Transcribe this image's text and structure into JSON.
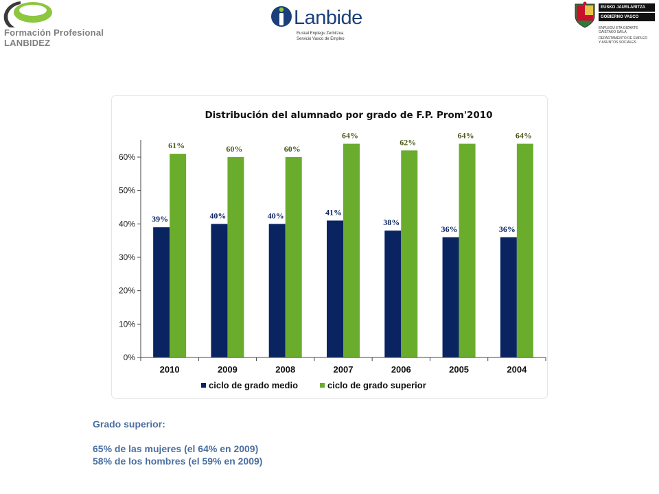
{
  "header": {
    "fp_logo": {
      "line1": "Formación Profesional",
      "line2": "LANBIDEZ",
      "accent": "#8dc63f"
    },
    "lanbide_logo": {
      "word": "Lanbide",
      "sub1": "Euskal Enplegu Zerbitzua",
      "sub2": "Servicio Vasco de Empleo",
      "color": "#1b3f7a"
    },
    "gv_logo": {
      "band1": "EUSKO JAURLARITZA",
      "band2": "GOBIERNO VASCO",
      "dept1": "ENPLEGU ETA GIZARTE",
      "dept2": "GAIETAKO SAILA",
      "dept3": "DEPARTAMENTO DE EMPLEO",
      "dept4": "Y ASUNTOS SOCIALES"
    }
  },
  "chart_data": {
    "type": "bar",
    "title": "Distribución del alumnado por grado de F.P. Prom'2010",
    "categories": [
      "2010",
      "2009",
      "2008",
      "2007",
      "2006",
      "2005",
      "2004"
    ],
    "series": [
      {
        "name": "ciclo de grado medio",
        "values": [
          39,
          40,
          40,
          41,
          38,
          36,
          36
        ],
        "labels": [
          "39%",
          "40%",
          "40%",
          "41%",
          "38%",
          "36%",
          "36%"
        ],
        "color": "#0a2462"
      },
      {
        "name": "ciclo de grado superior",
        "values": [
          61,
          60,
          60,
          64,
          62,
          64,
          64
        ],
        "labels": [
          "61%",
          "60%",
          "60%",
          "64%",
          "62%",
          "64%",
          "64%"
        ],
        "color": "#6aac2c"
      }
    ],
    "ylim": [
      0,
      60
    ],
    "yticks": [
      "0%",
      "10%",
      "20%",
      "30%",
      "40%",
      "50%",
      "60%"
    ],
    "legend_position": "bottom",
    "grid": false
  },
  "notes": {
    "heading": "Grado superior:",
    "line1": "65% de las mujeres (el 64% en 2009)",
    "line2": "58% de los hombres (el 59% en 2009)"
  }
}
